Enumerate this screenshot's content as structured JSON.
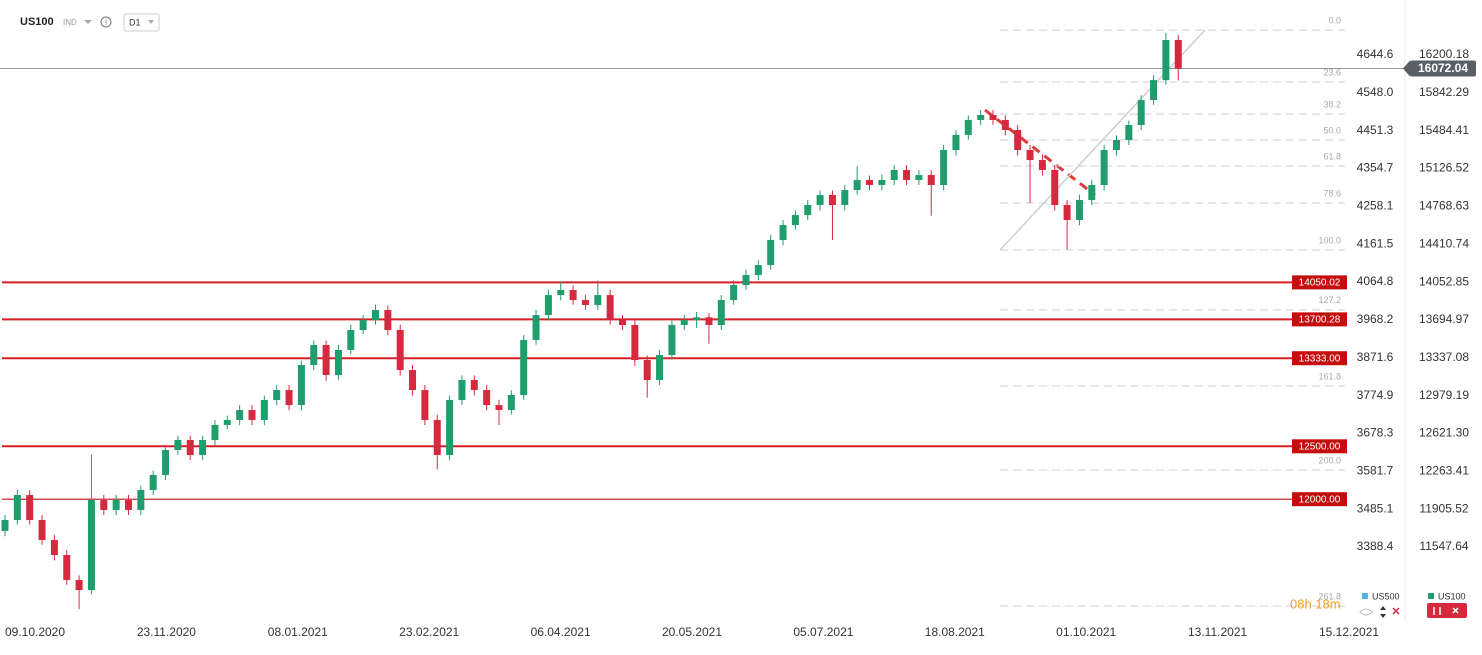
{
  "chart_data": {
    "type": "candlestick",
    "symbol": "US100",
    "market": "IND",
    "interval": "D1",
    "ylim": [
      10857.6,
      16720.3
    ],
    "yticks": [
      16200.18,
      15842.29,
      15484.41,
      15126.52,
      14768.63,
      14410.74,
      14052.85,
      13694.97,
      13337.08,
      12979.19,
      {
        "value": 12621.3,
        "label": "12621.30"
      },
      12263.41,
      11905.52,
      11547.64
    ],
    "y2lim": [
      3202.0,
      4785.0
    ],
    "y2ticks": [
      4644.6,
      {
        "value": 4548,
        "label": "4548.0"
      },
      4451.3,
      4354.7,
      4258.1,
      4161.5,
      4064.8,
      3968.2,
      3871.6,
      3774.9,
      3678.3,
      3581.7,
      3485.1,
      3388.4
    ],
    "x_labels": [
      "09.10.2020",
      "23.11.2020",
      "08.01.2021",
      "23.02.2021",
      "06.04.2021",
      "20.05.2021",
      "05.07.2021",
      "18.08.2021",
      "01.10.2021",
      "13.11.2021",
      "15.12.2021"
    ],
    "up_color": "#1f9d6c",
    "down_color": "#d5293f",
    "candles": [
      [
        11700,
        11850,
        11650,
        11803
      ],
      [
        11803,
        12090,
        11760,
        12040
      ],
      [
        12040,
        12085,
        11760,
        11803
      ],
      [
        11803,
        11850,
        11570,
        11614
      ],
      [
        11614,
        11660,
        11420,
        11472
      ],
      [
        11472,
        11520,
        11190,
        11236
      ],
      [
        11236,
        11280,
        10960,
        11141
      ],
      [
        11141,
        12420,
        11100,
        11992
      ],
      [
        11992,
        12040,
        11850,
        11898
      ],
      [
        11898,
        12040,
        11850,
        11992
      ],
      [
        11992,
        12040,
        11850,
        11898
      ],
      [
        11898,
        12130,
        11850,
        12087
      ],
      [
        12087,
        12270,
        12040,
        12229
      ],
      [
        12229,
        12510,
        12180,
        12465
      ],
      [
        12465,
        12600,
        12420,
        12560
      ],
      [
        12560,
        12600,
        12370,
        12418
      ],
      [
        12418,
        12600,
        12370,
        12560
      ],
      [
        12560,
        12750,
        12510,
        12702
      ],
      [
        12702,
        12790,
        12660,
        12749
      ],
      [
        12749,
        12890,
        12700,
        12843
      ],
      [
        12843,
        12890,
        12700,
        12749
      ],
      [
        12749,
        12980,
        12700,
        12938
      ],
      [
        12938,
        13080,
        12890,
        13032
      ],
      [
        13032,
        13080,
        12840,
        12890
      ],
      [
        12890,
        13310,
        12840,
        13269
      ],
      [
        13269,
        13500,
        13220,
        13458
      ],
      [
        13458,
        13500,
        13120,
        13174
      ],
      [
        13174,
        13460,
        13130,
        13411
      ],
      [
        13411,
        13650,
        13370,
        13600
      ],
      [
        13600,
        13740,
        13560,
        13694
      ],
      [
        13694,
        13840,
        13650,
        13789
      ],
      [
        13789,
        13830,
        13550,
        13600
      ],
      [
        13600,
        13650,
        13170,
        13221
      ],
      [
        13221,
        13270,
        12980,
        13032
      ],
      [
        13032,
        13080,
        12700,
        12749
      ],
      [
        12749,
        12800,
        12280,
        12418
      ],
      [
        12418,
        12980,
        12370,
        12938
      ],
      [
        12938,
        13170,
        12890,
        13127
      ],
      [
        13127,
        13170,
        12980,
        13032
      ],
      [
        13032,
        13080,
        12840,
        12890
      ],
      [
        12890,
        12940,
        12700,
        12843
      ],
      [
        12843,
        13030,
        12800,
        12985
      ],
      [
        12985,
        13550,
        12940,
        13505
      ],
      [
        13505,
        13790,
        13460,
        13741
      ],
      [
        13741,
        13980,
        13700,
        13930
      ],
      [
        13930,
        14060,
        13880,
        13978
      ],
      [
        13978,
        14020,
        13840,
        13883
      ],
      [
        13883,
        13930,
        13790,
        13836
      ],
      [
        13836,
        14070,
        13790,
        13930
      ],
      [
        13930,
        13980,
        13650,
        13694
      ],
      [
        13694,
        13740,
        13600,
        13647
      ],
      [
        13647,
        13690,
        13260,
        13316
      ],
      [
        13316,
        13360,
        12960,
        13127
      ],
      [
        13127,
        13410,
        13080,
        13363
      ],
      [
        13363,
        13690,
        13320,
        13647
      ],
      [
        13647,
        13740,
        13600,
        13694
      ],
      [
        13694,
        13770,
        13620,
        13720
      ],
      [
        13720,
        13760,
        13470,
        13647
      ],
      [
        13647,
        13930,
        13600,
        13883
      ],
      [
        13883,
        14070,
        13840,
        14025
      ],
      [
        14025,
        14170,
        13980,
        14120
      ],
      [
        14120,
        14260,
        14070,
        14214
      ],
      [
        14214,
        14500,
        14170,
        14451
      ],
      [
        14451,
        14640,
        14400,
        14592
      ],
      [
        14592,
        14730,
        14550,
        14687
      ],
      [
        14687,
        14830,
        14640,
        14782
      ],
      [
        14782,
        14920,
        14730,
        14876
      ],
      [
        14876,
        14920,
        14450,
        14782
      ],
      [
        14782,
        14970,
        14730,
        14923
      ],
      [
        14923,
        15150,
        14880,
        15018
      ],
      [
        15018,
        15060,
        14920,
        14971
      ],
      [
        14971,
        15070,
        14920,
        15018
      ],
      [
        15018,
        15160,
        14970,
        15113
      ],
      [
        15113,
        15160,
        14970,
        15018
      ],
      [
        15018,
        15110,
        14970,
        15065
      ],
      [
        15065,
        15110,
        14680,
        14971
      ],
      [
        14971,
        15350,
        14920,
        15302
      ],
      [
        15302,
        15490,
        15250,
        15444
      ],
      [
        15444,
        15630,
        15400,
        15586
      ],
      [
        15586,
        15680,
        15540,
        15633
      ],
      [
        15633,
        15680,
        15540,
        15586
      ],
      [
        15586,
        15630,
        15440,
        15491
      ],
      [
        15491,
        15540,
        15250,
        15302
      ],
      [
        15302,
        15350,
        14800,
        15207
      ],
      [
        15207,
        15260,
        15060,
        15113
      ],
      [
        15113,
        15160,
        14730,
        14782
      ],
      [
        14782,
        14830,
        14360,
        14640
      ],
      [
        14640,
        14880,
        14590,
        14829
      ],
      [
        14829,
        15020,
        14780,
        14971
      ],
      [
        14971,
        15350,
        14920,
        15302
      ],
      [
        15302,
        15440,
        15250,
        15396
      ],
      [
        15396,
        15580,
        15350,
        15538
      ],
      [
        15538,
        15820,
        15490,
        15774
      ],
      [
        15774,
        16010,
        15730,
        15963
      ],
      [
        15963,
        16410,
        15920,
        16342
      ],
      [
        16342,
        16390,
        15960,
        16072.04
      ]
    ],
    "last_price": 16072.04,
    "levels": [
      14050.02,
      13700.28,
      {
        "value": 13333,
        "label": "13333.00"
      },
      {
        "value": 12500,
        "label": "12500.00"
      },
      {
        "value": 12000,
        "label": "12000.00"
      }
    ],
    "fibonacci": {
      "high": 16436,
      "low": 14356,
      "levels": [
        {
          "value": 0,
          "label": "0.0"
        },
        23.6,
        38.2,
        {
          "value": 50,
          "label": "50.0"
        },
        61.8,
        78.6,
        {
          "value": 100,
          "label": "100.0"
        },
        127.2,
        161.8,
        {
          "value": 200,
          "label": "200.0"
        },
        261.8
      ]
    },
    "legend": [
      {
        "name": "US500",
        "color": "#4fb6e6"
      },
      {
        "name": "US100",
        "color": "#1f9d6c"
      }
    ],
    "timer": "08h 18m"
  }
}
